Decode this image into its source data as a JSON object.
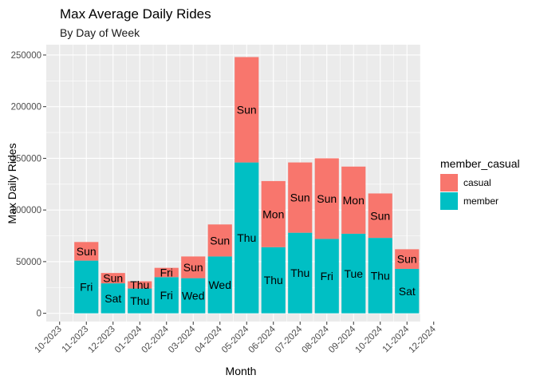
{
  "chart_data": {
    "type": "bar",
    "stacked": true,
    "title": "Max Average Daily Rides",
    "subtitle": "By Day of Week",
    "xlabel": "Month",
    "ylabel": "Max Daily Rides",
    "x_ticks": [
      "10-2023",
      "11-2023",
      "12-2023",
      "01-2024",
      "02-2024",
      "03-2024",
      "04-2024",
      "05-2024",
      "06-2024",
      "07-2024",
      "08-2024",
      "09-2024",
      "10-2024",
      "11-2024",
      "12-2024"
    ],
    "y_ticks": [
      "0",
      "50000",
      "100000",
      "150000",
      "200000",
      "250000"
    ],
    "ylim": [
      -8000,
      260000
    ],
    "categories": [
      "11-2023",
      "12-2023",
      "01-2024",
      "02-2024",
      "03-2024",
      "04-2024",
      "05-2024",
      "06-2024",
      "07-2024",
      "08-2024",
      "09-2024",
      "10-2024",
      "11-2024"
    ],
    "series": [
      {
        "name": "member",
        "color": "#00BFC4",
        "values": [
          51000,
          29000,
          24000,
          35000,
          34000,
          55000,
          146000,
          64000,
          78000,
          72000,
          77000,
          73000,
          43000
        ],
        "labels": [
          "Fri",
          "Sat",
          "Thu",
          "Fri",
          "Wed",
          "Wed",
          "Thu",
          "Thu",
          "Thu",
          "Fri",
          "Tue",
          "Thu",
          "Sat"
        ]
      },
      {
        "name": "casual",
        "color": "#F8766D",
        "values": [
          18000,
          10000,
          7000,
          9000,
          21000,
          31000,
          102000,
          64000,
          68000,
          78000,
          65000,
          43000,
          19000
        ],
        "labels": [
          "Sun",
          "Sun",
          "Thu",
          "Fri",
          "Sun",
          "Sun",
          "Sun",
          "Mon",
          "Sun",
          "Sun",
          "Mon",
          "Sun",
          "Sun"
        ]
      }
    ],
    "legend": {
      "title": "member_casual",
      "position": "right",
      "entries": [
        {
          "label": "casual",
          "color": "#F8766D"
        },
        {
          "label": "member",
          "color": "#00BFC4"
        }
      ]
    },
    "panel_background": "#EBEBEB",
    "grid_color": "#FFFFFF",
    "grid": true
  }
}
